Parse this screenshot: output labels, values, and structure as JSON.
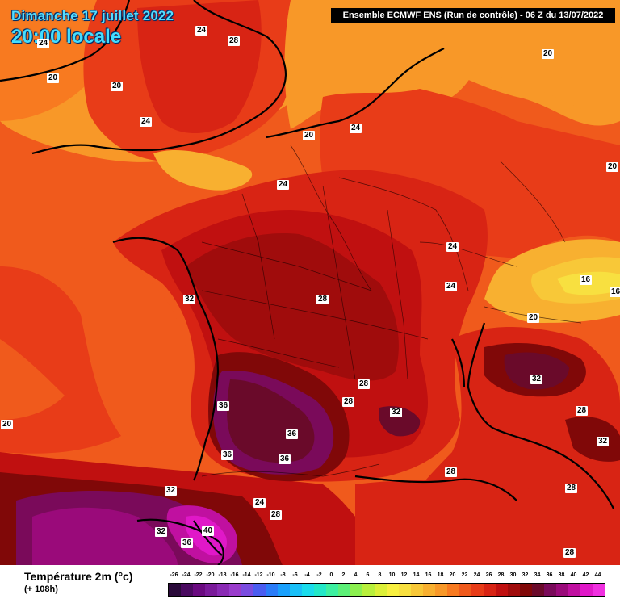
{
  "header": {
    "date": "Dimanche 17 juillet 2022",
    "hour": "20:00 locale",
    "run": "Ensemble ECMWF ENS  (Run de contrôle)  -  06 Z du 13/07/2022"
  },
  "legend": {
    "title": "Température 2m (°c)",
    "lead": "(+ 108h)",
    "ticks": [
      "-26",
      "-24",
      "-22",
      "-20",
      "-18",
      "-16",
      "-14",
      "-12",
      "-10",
      "-8",
      "-6",
      "-4",
      "-2",
      "0",
      "2",
      "4",
      "6",
      "8",
      "10",
      "12",
      "14",
      "16",
      "18",
      "20",
      "22",
      "24",
      "26",
      "28",
      "30",
      "32",
      "34",
      "36",
      "38",
      "40",
      "42",
      "44"
    ],
    "colors": [
      "#2a0a3a",
      "#4a0a60",
      "#6a0a80",
      "#7a1a9a",
      "#8a2ab4",
      "#9a3ccc",
      "#7a4ce0",
      "#4a5cf0",
      "#2a7cf8",
      "#1aa0fc",
      "#1ac0f8",
      "#1adcec",
      "#22e8c8",
      "#3cf0a0",
      "#5cf078",
      "#8cf050",
      "#b8f03c",
      "#dcf038",
      "#f8f040",
      "#f8e040",
      "#f8c838",
      "#f8b030",
      "#f89828",
      "#f87a20",
      "#f05a1c",
      "#e83c18",
      "#d82414",
      "#c01010",
      "#a00c0c",
      "#800808",
      "#6a0a2a",
      "#7a0a5a",
      "#9a0a7a",
      "#c010a0",
      "#e018c8",
      "#f030e0"
    ]
  },
  "map_labels": [
    {
      "value": "24"
    },
    {
      "value": "28"
    },
    {
      "value": "24"
    },
    {
      "value": "20"
    },
    {
      "value": "20"
    },
    {
      "value": "24"
    },
    {
      "value": "20"
    },
    {
      "value": "24"
    },
    {
      "value": "20"
    },
    {
      "value": "20"
    },
    {
      "value": "24"
    },
    {
      "value": "24"
    },
    {
      "value": "24"
    },
    {
      "value": "16"
    },
    {
      "value": "16"
    },
    {
      "value": "20"
    },
    {
      "value": "32"
    },
    {
      "value": "28"
    },
    {
      "value": "32"
    },
    {
      "value": "28"
    },
    {
      "value": "28"
    },
    {
      "value": "32"
    },
    {
      "value": "36"
    },
    {
      "value": "36"
    },
    {
      "value": "36"
    },
    {
      "value": "36"
    },
    {
      "value": "20"
    },
    {
      "value": "28"
    },
    {
      "value": "32"
    },
    {
      "value": "32"
    },
    {
      "value": "24"
    },
    {
      "value": "28"
    },
    {
      "value": "28"
    },
    {
      "value": "28"
    },
    {
      "value": "32"
    },
    {
      "value": "40"
    },
    {
      "value": "36"
    },
    {
      "value": "28"
    }
  ]
}
